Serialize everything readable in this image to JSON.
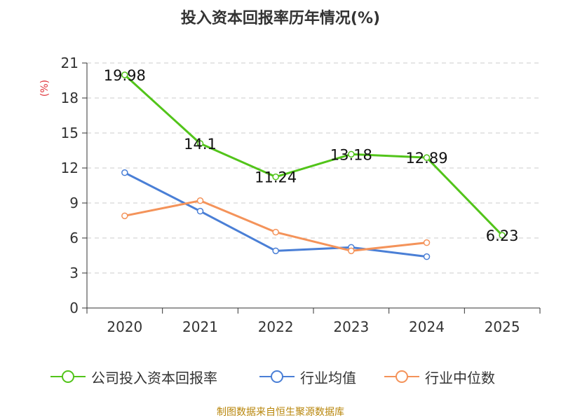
{
  "chart_data": {
    "type": "line",
    "title": "投入资本回报率历年情况(%)",
    "ylabel": "(%)",
    "xlabel": "",
    "categories": [
      "2020",
      "2021",
      "2022",
      "2023",
      "2024",
      "2025"
    ],
    "ylim": [
      0,
      21
    ],
    "yticks": [
      0,
      3,
      6,
      9,
      12,
      15,
      18,
      21
    ],
    "grid": true,
    "legend_position": "bottom",
    "series": [
      {
        "name": "公司投入资本回报率",
        "color": "#52c41a",
        "values": [
          19.98,
          14.1,
          11.24,
          13.18,
          12.89,
          6.23
        ],
        "labels": [
          "19.98",
          "14.1",
          "11.24",
          "13.18",
          "12.89",
          "6.23"
        ]
      },
      {
        "name": "行业均值",
        "color": "#4a7fd6",
        "values": [
          11.6,
          8.3,
          4.9,
          5.2,
          4.4,
          null
        ]
      },
      {
        "name": "行业中位数",
        "color": "#f4935a",
        "values": [
          7.9,
          9.2,
          6.5,
          4.9,
          5.6,
          null
        ]
      }
    ],
    "source": "制图数据来自恒生聚源数据库"
  }
}
